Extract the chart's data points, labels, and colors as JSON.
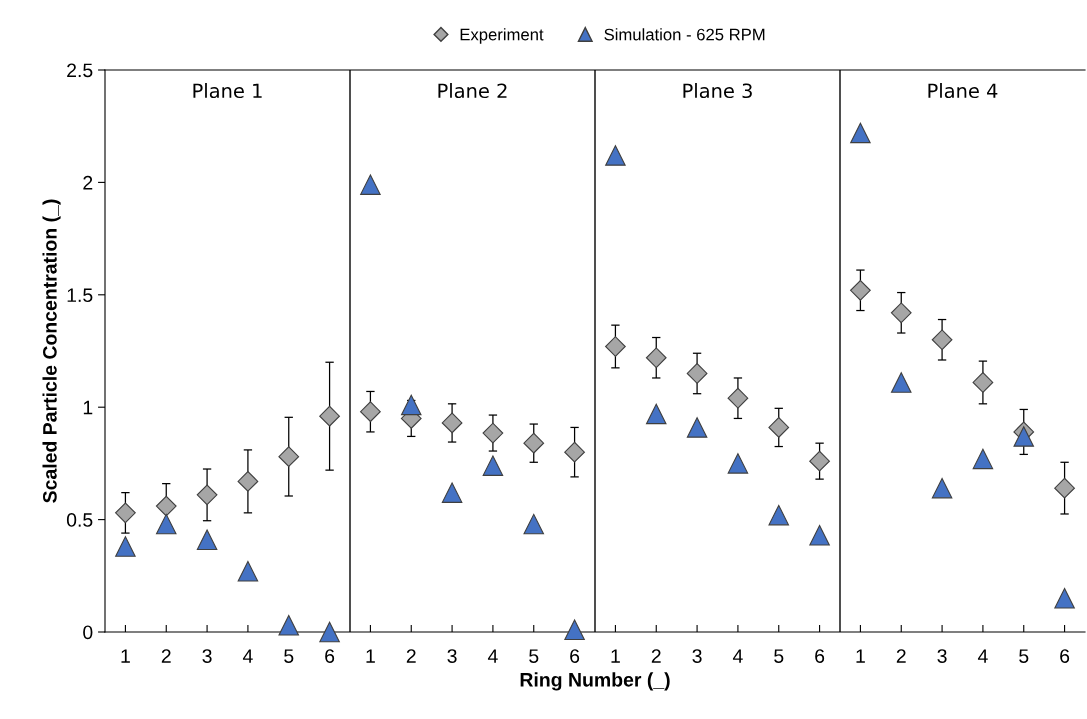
{
  "chart_data": {
    "type": "scatter",
    "xlabel": "Ring Number (_)",
    "ylabel": "Scaled Particle Concentration (_)",
    "categories": [
      "1",
      "2",
      "3",
      "4",
      "5",
      "6",
      "1",
      "2",
      "3",
      "4",
      "5",
      "6",
      "1",
      "2",
      "3",
      "4",
      "5",
      "6",
      "1",
      "2",
      "3",
      "4",
      "5",
      "6"
    ],
    "ylim": [
      0,
      2.5
    ],
    "yticks": [
      0,
      0.5,
      1,
      1.5,
      2,
      2.5
    ],
    "grid": false,
    "legend": "top",
    "series": [
      {
        "name": "Experiment",
        "color": "#a6a6a6",
        "marker": "diamond",
        "values": [
          0.53,
          0.56,
          0.61,
          0.67,
          0.78,
          0.96,
          0.98,
          0.95,
          0.93,
          0.885,
          0.84,
          0.8,
          1.27,
          1.22,
          1.15,
          1.04,
          0.91,
          0.76,
          1.52,
          1.42,
          1.3,
          1.11,
          0.89,
          0.64
        ],
        "errors": [
          0.09,
          0.1,
          0.115,
          0.14,
          0.175,
          0.24,
          0.09,
          0.08,
          0.085,
          0.08,
          0.085,
          0.11,
          0.095,
          0.09,
          0.09,
          0.09,
          0.085,
          0.08,
          0.09,
          0.09,
          0.09,
          0.095,
          0.1,
          0.115
        ]
      },
      {
        "name": "Simulation - 625 RPM",
        "color": "#4472c4",
        "marker": "triangle",
        "values": [
          0.38,
          0.48,
          0.41,
          0.27,
          0.03,
          0.0,
          1.99,
          1.01,
          0.62,
          0.74,
          0.48,
          0.01,
          2.12,
          0.97,
          0.91,
          0.75,
          0.52,
          0.43,
          2.22,
          1.11,
          0.64,
          0.77,
          0.87,
          0.15
        ]
      }
    ],
    "annotations": [
      "Plane 1",
      "Plane 2",
      "Plane 3",
      "Plane 4"
    ]
  }
}
